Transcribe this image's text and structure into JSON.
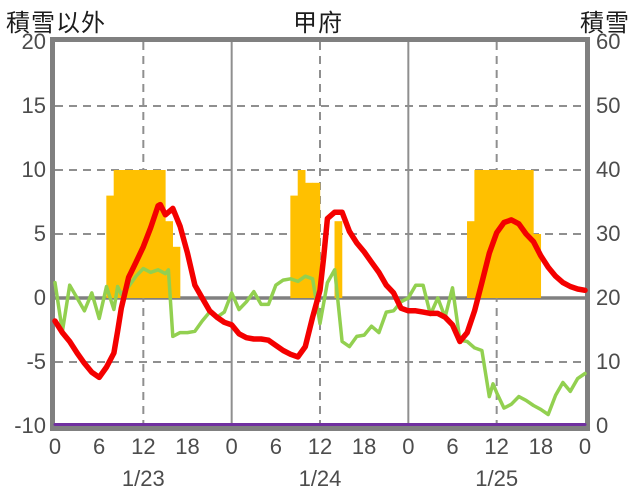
{
  "header": {
    "left_axis_title": "積雪以外",
    "chart_title": "甲府",
    "right_axis_title": "積雪"
  },
  "colors": {
    "background": "#ffffff",
    "frame": "#808080",
    "grid": "#8f8f8f",
    "zero_line": "#808080",
    "bars": "#FFC000",
    "red_line": "#F40000",
    "green_line": "#92D050",
    "purple_line": "#7030A0",
    "tick_text": "#4c4c4c",
    "title_text": "#1c1c1c"
  },
  "chart_data": {
    "type": "line",
    "title": "甲府",
    "grid": true,
    "legend": "none",
    "left_axis": {
      "title": "積雪以外",
      "min": -10,
      "max": 20,
      "ticks": [
        20,
        15,
        10,
        5,
        0,
        -5,
        -10
      ]
    },
    "right_axis": {
      "title": "積雪",
      "min": 0,
      "max": 60,
      "ticks": [
        60,
        50,
        40,
        30,
        20,
        10,
        0
      ]
    },
    "x_axis": {
      "total_hours": 72,
      "tick_interval_hours": 6,
      "tick_labels": [
        "0",
        "6",
        "12",
        "18",
        "0",
        "6",
        "12",
        "18",
        "0",
        "6",
        "12",
        "18",
        "0"
      ],
      "date_labels": [
        "1/23",
        "1/24",
        "1/25"
      ],
      "date_label_center_hours": [
        12,
        36,
        60
      ],
      "solid_gridline_hours": [
        24,
        48
      ],
      "dashed_gridline_hours": [
        12,
        36,
        60
      ]
    },
    "horizontal_gridlines": {
      "dashed_at": [
        15,
        10,
        5,
        -5
      ],
      "solid_at": [
        0
      ]
    },
    "series": [
      {
        "name": "sunshine-bars",
        "type": "bar",
        "axis": "left",
        "color": "#FFC000",
        "points": [
          [
            7,
            8
          ],
          [
            8,
            10
          ],
          [
            9,
            10
          ],
          [
            10,
            10
          ],
          [
            11,
            10
          ],
          [
            12,
            10
          ],
          [
            13,
            10
          ],
          [
            14,
            10
          ],
          [
            15,
            6
          ],
          [
            16,
            4
          ],
          [
            32,
            8
          ],
          [
            33,
            10
          ],
          [
            34,
            9
          ],
          [
            35,
            9
          ],
          [
            38,
            6
          ],
          [
            56,
            6
          ],
          [
            57,
            10
          ],
          [
            58,
            10
          ],
          [
            59,
            10
          ],
          [
            60,
            10
          ],
          [
            61,
            10
          ],
          [
            62,
            10
          ],
          [
            63,
            10
          ],
          [
            64,
            10
          ],
          [
            65,
            5
          ]
        ]
      },
      {
        "name": "green-line",
        "type": "line",
        "axis": "left",
        "color": "#92D050",
        "points": [
          [
            0,
            1.2
          ],
          [
            1,
            -2.6
          ],
          [
            2,
            1.0
          ],
          [
            3,
            0.0
          ],
          [
            4,
            -1.0
          ],
          [
            5,
            0.4
          ],
          [
            6,
            -1.6
          ],
          [
            7,
            0.9
          ],
          [
            8,
            -0.9
          ],
          [
            8.5,
            0.9
          ],
          [
            9,
            0.3
          ],
          [
            10,
            0.9
          ],
          [
            11,
            1.7
          ],
          [
            12,
            2.3
          ],
          [
            13,
            2.0
          ],
          [
            14,
            2.2
          ],
          [
            15,
            1.9
          ],
          [
            15.4,
            2.2
          ],
          [
            16,
            -3.0
          ],
          [
            17,
            -2.7
          ],
          [
            18,
            -2.7
          ],
          [
            19,
            -2.6
          ],
          [
            20,
            -1.8
          ],
          [
            21,
            -1.1
          ],
          [
            22,
            -1.5
          ],
          [
            23,
            -1.1
          ],
          [
            24,
            0.4
          ],
          [
            25,
            -0.9
          ],
          [
            26,
            -0.3
          ],
          [
            27,
            0.5
          ],
          [
            28,
            -0.5
          ],
          [
            29,
            -0.5
          ],
          [
            30,
            1.0
          ],
          [
            31,
            1.4
          ],
          [
            32,
            1.5
          ],
          [
            33,
            1.3
          ],
          [
            34,
            1.7
          ],
          [
            35,
            1.5
          ],
          [
            36,
            -2.0
          ],
          [
            37,
            1.2
          ],
          [
            38,
            2.2
          ],
          [
            39,
            -3.4
          ],
          [
            40,
            -3.8
          ],
          [
            41,
            -3.0
          ],
          [
            42,
            -2.9
          ],
          [
            43,
            -2.2
          ],
          [
            44,
            -2.7
          ],
          [
            45,
            -1.1
          ],
          [
            46,
            -1.0
          ],
          [
            47,
            -0.3
          ],
          [
            48,
            0.0
          ],
          [
            49,
            1.0
          ],
          [
            50,
            1.0
          ],
          [
            51,
            -1.3
          ],
          [
            52,
            0.0
          ],
          [
            53,
            -1.5
          ],
          [
            54,
            0.8
          ],
          [
            55,
            -3.3
          ],
          [
            56,
            -3.4
          ],
          [
            57,
            -3.9
          ],
          [
            58,
            -4.1
          ],
          [
            59,
            -7.7
          ],
          [
            59.5,
            -6.7
          ],
          [
            60,
            -7.4
          ],
          [
            61,
            -8.6
          ],
          [
            62,
            -8.3
          ],
          [
            63,
            -7.7
          ],
          [
            64,
            -8.0
          ],
          [
            65,
            -8.4
          ],
          [
            66,
            -8.7
          ],
          [
            67,
            -9.1
          ],
          [
            68,
            -7.6
          ],
          [
            69,
            -6.6
          ],
          [
            70,
            -7.3
          ],
          [
            71,
            -6.3
          ],
          [
            72,
            -5.9
          ]
        ]
      },
      {
        "name": "red-line",
        "type": "line",
        "axis": "left",
        "color": "#F40000",
        "points": [
          [
            0,
            -1.8
          ],
          [
            1,
            -2.7
          ],
          [
            2,
            -3.4
          ],
          [
            3,
            -4.3
          ],
          [
            4,
            -5.1
          ],
          [
            5,
            -5.8
          ],
          [
            6,
            -6.2
          ],
          [
            7,
            -5.4
          ],
          [
            8,
            -4.3
          ],
          [
            8.5,
            -2.6
          ],
          [
            9,
            -0.8
          ],
          [
            10,
            1.6
          ],
          [
            11,
            2.8
          ],
          [
            12,
            4.0
          ],
          [
            13,
            5.5
          ],
          [
            14,
            7.2
          ],
          [
            14.3,
            7.3
          ],
          [
            15,
            6.5
          ],
          [
            16,
            7.0
          ],
          [
            17,
            5.6
          ],
          [
            18,
            3.5
          ],
          [
            19,
            1.0
          ],
          [
            20,
            0.0
          ],
          [
            21,
            -1.0
          ],
          [
            22,
            -1.5
          ],
          [
            23,
            -1.9
          ],
          [
            24,
            -2.1
          ],
          [
            25,
            -2.8
          ],
          [
            26,
            -3.1
          ],
          [
            27,
            -3.2
          ],
          [
            28,
            -3.2
          ],
          [
            29,
            -3.3
          ],
          [
            30,
            -3.7
          ],
          [
            31,
            -4.1
          ],
          [
            32,
            -4.4
          ],
          [
            33,
            -4.6
          ],
          [
            34,
            -3.8
          ],
          [
            35,
            -1.5
          ],
          [
            36,
            0.6
          ],
          [
            36.5,
            3.2
          ],
          [
            37,
            6.2
          ],
          [
            38,
            6.7
          ],
          [
            39,
            6.7
          ],
          [
            40,
            5.2
          ],
          [
            41,
            4.3
          ],
          [
            42,
            3.6
          ],
          [
            43,
            2.8
          ],
          [
            44,
            2.0
          ],
          [
            45,
            1.0
          ],
          [
            46,
            0.4
          ],
          [
            47,
            -0.8
          ],
          [
            48,
            -1.0
          ],
          [
            49,
            -1.0
          ],
          [
            50,
            -1.1
          ],
          [
            51,
            -1.2
          ],
          [
            52,
            -1.2
          ],
          [
            53,
            -1.5
          ],
          [
            54,
            -2.1
          ],
          [
            55,
            -3.4
          ],
          [
            56,
            -2.7
          ],
          [
            57,
            -1.0
          ],
          [
            58,
            1.2
          ],
          [
            59,
            3.5
          ],
          [
            60,
            5.1
          ],
          [
            61,
            5.9
          ],
          [
            62,
            6.1
          ],
          [
            63,
            5.8
          ],
          [
            64,
            5.0
          ],
          [
            65,
            4.4
          ],
          [
            66,
            3.3
          ],
          [
            67,
            2.4
          ],
          [
            68,
            1.7
          ],
          [
            69,
            1.2
          ],
          [
            70,
            0.9
          ],
          [
            71,
            0.7
          ],
          [
            72,
            0.6
          ]
        ]
      },
      {
        "name": "snow-depth-line",
        "type": "line",
        "axis": "right",
        "color": "#7030A0",
        "points": [
          [
            0,
            0
          ],
          [
            72,
            0
          ]
        ]
      }
    ]
  }
}
